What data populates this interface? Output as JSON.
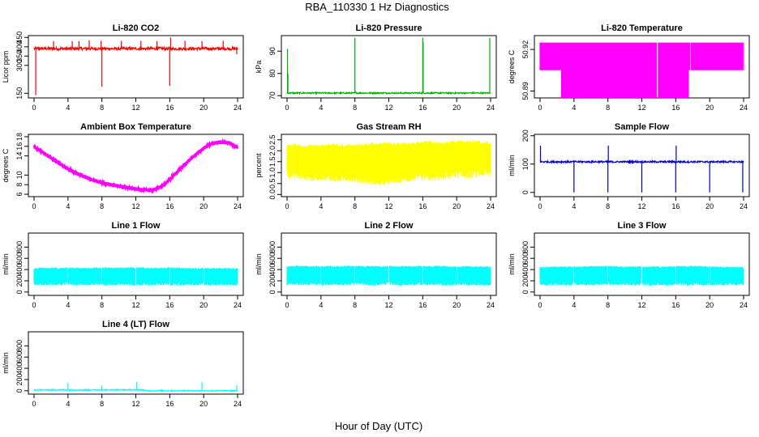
{
  "figure": {
    "title": "RBA_110330  1 Hz Diagnostics",
    "xlabel": "Hour of Day (UTC)",
    "x_ticks": [
      "0",
      "4",
      "8",
      "12",
      "16",
      "20",
      "24"
    ]
  },
  "chart_data": [
    {
      "type": "line",
      "title": "Li-820 CO2",
      "ylabel": "Licor ppm",
      "color": "#ff0000",
      "xlim": [
        0,
        24
      ],
      "ylim": [
        125,
        460
      ],
      "y_ticks": [
        "150",
        "300",
        "350",
        "400",
        "450"
      ],
      "y_tick_values": [
        150,
        300,
        350,
        400,
        450
      ],
      "baseline": 390,
      "noise": 8,
      "spikes": [
        [
          0.2,
          140
        ],
        [
          2.3,
          430
        ],
        [
          4.5,
          430
        ],
        [
          5.3,
          430
        ],
        [
          6.5,
          435
        ],
        [
          7.9,
          432
        ],
        [
          8.0,
          185
        ],
        [
          10.3,
          432
        ],
        [
          12.6,
          432
        ],
        [
          14.5,
          430
        ],
        [
          16.0,
          190
        ],
        [
          16.1,
          450
        ],
        [
          17.8,
          432
        ],
        [
          19.8,
          430
        ],
        [
          22.3,
          432
        ],
        [
          23.9,
          360
        ]
      ],
      "series": [
        {
          "values": [
            150,
            390,
            390,
            390,
            390,
            390,
            390,
            390,
            185,
            390,
            390,
            390,
            390,
            390,
            390,
            390,
            190,
            390,
            390,
            390,
            390,
            390,
            390,
            390,
            360
          ]
        }
      ]
    },
    {
      "type": "line",
      "title": "Li-820 Pressure",
      "ylabel": "kPa",
      "color": "#00b000",
      "xlim": [
        0,
        24
      ],
      "ylim": [
        69,
        97
      ],
      "y_ticks": [
        "70",
        "80",
        "90"
      ],
      "y_tick_values": [
        70,
        80,
        90
      ],
      "baseline": 71.2,
      "noise": 0.3,
      "spikes": [
        [
          0.05,
          91
        ],
        [
          0.1,
          80
        ],
        [
          8.0,
          96
        ],
        [
          8.05,
          72
        ],
        [
          16.0,
          96
        ],
        [
          16.05,
          94
        ],
        [
          23.9,
          96
        ]
      ],
      "series": [
        {
          "values": [
            91,
            71.2,
            71.2,
            71.2,
            71.2,
            71.2,
            71.2,
            71.2,
            96,
            71.2,
            71.2,
            71.2,
            71.2,
            71.2,
            71.2,
            71.2,
            96,
            71.2,
            71.2,
            71.2,
            71.2,
            71.2,
            71.2,
            71.2,
            96
          ]
        }
      ]
    },
    {
      "type": "step",
      "title": "Li-820 Temperature",
      "ylabel": "degrees C",
      "color": "#ff00ff",
      "xlim": [
        0,
        24
      ],
      "ylim": [
        50.885,
        50.93
      ],
      "y_ticks": [
        "50.89",
        "50.92"
      ],
      "y_tick_values": [
        50.89,
        50.92
      ],
      "level_high": 50.925,
      "level_mid": 50.905,
      "level_low": 50.885,
      "series": [
        {
          "values": [
            50.905,
            50.905,
            50.905,
            50.885,
            50.885,
            50.885,
            50.885,
            50.885,
            50.885,
            50.885,
            50.885,
            50.885,
            50.885,
            50.885,
            50.885,
            50.885,
            50.885,
            50.885,
            50.905,
            50.905,
            50.905,
            50.905,
            50.905,
            50.905,
            50.905
          ]
        }
      ]
    },
    {
      "type": "line",
      "title": "Ambient Box Temperature",
      "ylabel": "degrees C",
      "color": "#ff00ff",
      "xlim": [
        0,
        24
      ],
      "ylim": [
        5.5,
        18.5
      ],
      "y_ticks": [
        "6",
        "8",
        "10",
        "14",
        "16",
        "18"
      ],
      "y_tick_values": [
        6,
        8,
        10,
        14,
        16,
        18
      ],
      "noise": 0.35,
      "x": [
        0,
        1,
        2,
        3,
        4,
        5,
        6,
        7,
        8,
        9,
        10,
        11,
        12,
        13,
        14,
        15,
        16,
        17,
        18,
        19,
        20,
        21,
        22,
        23,
        24
      ],
      "series": [
        {
          "values": [
            15.9,
            14.8,
            13.6,
            12.4,
            11.3,
            10.4,
            9.6,
            8.9,
            8.4,
            8.0,
            7.7,
            7.4,
            7.1,
            6.9,
            6.9,
            7.6,
            9.0,
            10.9,
            12.6,
            14.2,
            15.6,
            16.6,
            16.9,
            16.7,
            15.8
          ]
        }
      ]
    },
    {
      "type": "band",
      "title": "Gas Stream RH",
      "ylabel": "percent",
      "color": "#ffff00",
      "xlim": [
        0,
        24
      ],
      "ylim": [
        -0.1,
        2.75
      ],
      "y_ticks": [
        "0.0",
        "0.5",
        "1.0",
        "1.5",
        "2.0",
        "2.5"
      ],
      "y_tick_values": [
        0.0,
        0.5,
        1.0,
        1.5,
        2.0,
        2.5
      ],
      "series": [
        {
          "name": "upper",
          "values": [
            2.3,
            2.35,
            2.25,
            2.3,
            2.3,
            2.35,
            2.3,
            2.3,
            2.35,
            2.3,
            2.4,
            2.35,
            2.4,
            2.35,
            2.4,
            2.4,
            2.45,
            2.45,
            2.4,
            2.45,
            2.5,
            2.45,
            2.5,
            2.45,
            2.4
          ]
        },
        {
          "name": "lower",
          "values": [
            0.75,
            0.7,
            0.65,
            0.6,
            0.65,
            0.6,
            0.55,
            0.6,
            0.55,
            0.5,
            0.45,
            0.4,
            0.45,
            0.5,
            0.55,
            0.6,
            0.65,
            0.6,
            0.65,
            0.7,
            0.75,
            0.7,
            0.75,
            0.8,
            0.75
          ]
        }
      ]
    },
    {
      "type": "line",
      "title": "Sample Flow",
      "ylabel": "ml/min",
      "color": "#0000cc",
      "xlim": [
        0,
        24
      ],
      "ylim": [
        -15,
        205
      ],
      "y_ticks": [
        "0",
        "100",
        "200"
      ],
      "y_tick_values": [
        0,
        100,
        200
      ],
      "baseline": 108,
      "noise": 3,
      "spikes": [
        [
          0.05,
          165
        ],
        [
          4.0,
          0
        ],
        [
          8.0,
          0
        ],
        [
          8.05,
          165
        ],
        [
          12.0,
          0
        ],
        [
          16.0,
          0
        ],
        [
          16.05,
          165
        ],
        [
          20.0,
          0
        ],
        [
          23.9,
          0
        ]
      ],
      "series": [
        {
          "values": [
            165,
            108,
            108,
            108,
            0,
            108,
            108,
            108,
            0,
            108,
            108,
            108,
            0,
            108,
            108,
            108,
            0,
            108,
            108,
            108,
            0,
            108,
            108,
            108,
            0
          ]
        }
      ]
    },
    {
      "type": "band",
      "title": "Line 1 Flow",
      "ylabel": "ml/min",
      "color": "#00ffff",
      "xlim": [
        0,
        24
      ],
      "ylim": [
        -60,
        1050
      ],
      "y_ticks": [
        "0",
        "200",
        "400",
        "600",
        "800"
      ],
      "y_tick_values": [
        0,
        200,
        400,
        600,
        800
      ],
      "gaps": [
        4.0,
        8.0,
        12.0,
        16.0,
        20.0
      ],
      "series": [
        {
          "name": "upper",
          "values": [
            430,
            440,
            440,
            435,
            440,
            440,
            435,
            440,
            440,
            440,
            440,
            440,
            445,
            440,
            435,
            440,
            440,
            440,
            430,
            430,
            435,
            430,
            430,
            430,
            430
          ]
        },
        {
          "name": "lower",
          "values": [
            120,
            110,
            115,
            110,
            120,
            110,
            115,
            110,
            110,
            110,
            115,
            110,
            110,
            115,
            110,
            115,
            110,
            110,
            115,
            110,
            115,
            110,
            115,
            110,
            110
          ]
        }
      ]
    },
    {
      "type": "band",
      "title": "Line 2 Flow",
      "ylabel": "ml/min",
      "color": "#00ffff",
      "xlim": [
        0,
        24
      ],
      "ylim": [
        -60,
        1050
      ],
      "y_ticks": [
        "0",
        "200",
        "400",
        "600",
        "800"
      ],
      "y_tick_values": [
        0,
        200,
        400,
        600,
        800
      ],
      "gaps": [
        4.0,
        8.0,
        12.0,
        16.0,
        20.0
      ],
      "series": [
        {
          "name": "upper",
          "values": [
            460,
            470,
            470,
            465,
            470,
            470,
            465,
            470,
            470,
            465,
            470,
            465,
            470,
            465,
            470,
            465,
            470,
            465,
            470,
            465,
            460,
            465,
            460,
            465,
            460
          ]
        },
        {
          "name": "lower",
          "values": [
            120,
            115,
            120,
            115,
            110,
            115,
            120,
            110,
            115,
            120,
            110,
            115,
            120,
            115,
            110,
            115,
            120,
            110,
            115,
            110,
            115,
            110,
            115,
            110,
            110
          ]
        }
      ]
    },
    {
      "type": "band",
      "title": "Line 3 Flow",
      "ylabel": "ml/min",
      "color": "#00ffff",
      "xlim": [
        0,
        24
      ],
      "ylim": [
        -60,
        1050
      ],
      "y_ticks": [
        "0",
        "200",
        "400",
        "600",
        "800"
      ],
      "y_tick_values": [
        0,
        200,
        400,
        600,
        800
      ],
      "gaps": [
        4.0,
        8.0,
        12.0,
        16.0,
        20.0
      ],
      "series": [
        {
          "name": "upper",
          "values": [
            450,
            455,
            455,
            455,
            460,
            460,
            465,
            470,
            470,
            465,
            460,
            460,
            460,
            455,
            460,
            460,
            465,
            470,
            470,
            465,
            460,
            460,
            455,
            455,
            450
          ]
        },
        {
          "name": "lower",
          "values": [
            115,
            110,
            115,
            110,
            115,
            110,
            115,
            110,
            115,
            110,
            115,
            110,
            115,
            110,
            115,
            110,
            115,
            110,
            115,
            110,
            115,
            110,
            115,
            110,
            110
          ]
        }
      ]
    },
    {
      "type": "line",
      "title": "Line 4 (LT) Flow",
      "ylabel": "ml/min",
      "color": "#00ffff",
      "xlim": [
        0,
        24
      ],
      "ylim": [
        -60,
        1050
      ],
      "y_ticks": [
        "0",
        "200",
        "400",
        "600",
        "800"
      ],
      "y_tick_values": [
        0,
        200,
        400,
        600,
        800
      ],
      "baseline": 15,
      "noise": 10,
      "spikes": [
        [
          4.0,
          140
        ],
        [
          8.0,
          90
        ],
        [
          12.1,
          160
        ],
        [
          19.8,
          150
        ],
        [
          23.9,
          100
        ]
      ],
      "series": [
        {
          "values": [
            15,
            15,
            15,
            15,
            140,
            15,
            15,
            15,
            90,
            15,
            15,
            15,
            160,
            5,
            0,
            0,
            0,
            0,
            0,
            0,
            150,
            0,
            0,
            0,
            100
          ]
        }
      ]
    }
  ]
}
